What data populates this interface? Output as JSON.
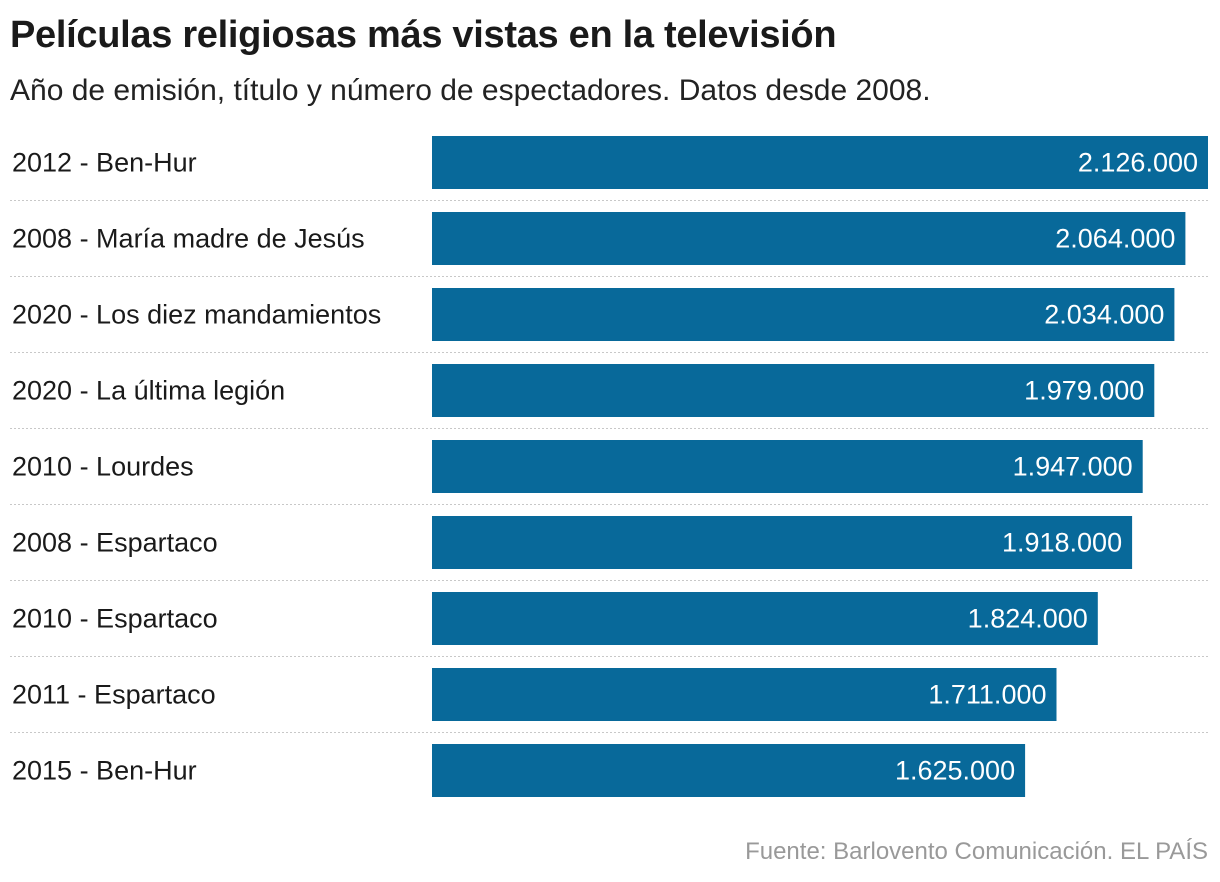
{
  "header": {
    "title": "Películas religiosas más vistas en la televisión",
    "subtitle": "Año de emisión, título y número de espectadores. Datos desde 2008."
  },
  "footer": {
    "source": "Fuente: Barlovento Comunicación. EL PAÍS"
  },
  "colors": {
    "bar": "#08699a",
    "separator": "#c8c8c8"
  },
  "chart_data": {
    "type": "bar",
    "orientation": "horizontal",
    "title": "Películas religiosas más vistas en la televisión",
    "subtitle": "Año de emisión, título y número de espectadores. Datos desde 2008.",
    "categories": [
      "2012 - Ben-Hur",
      "2008 - María madre de Jesús",
      "2020 - Los diez mandamientos",
      "2020 - La última legión",
      "2010 - Lourdes",
      "2008 - Espartaco",
      "2010 - Espartaco",
      "2011 - Espartaco",
      "2015 - Ben-Hur"
    ],
    "values": [
      2126000,
      2064000,
      2034000,
      1979000,
      1947000,
      1918000,
      1824000,
      1711000,
      1625000
    ],
    "value_labels": [
      "2.126.000",
      "2.064.000",
      "2.034.000",
      "1.979.000",
      "1.947.000",
      "1.918.000",
      "1.824.000",
      "1.711.000",
      "1.625.000"
    ],
    "xlim": [
      0,
      2126000
    ],
    "grid": false,
    "legend": "none"
  }
}
